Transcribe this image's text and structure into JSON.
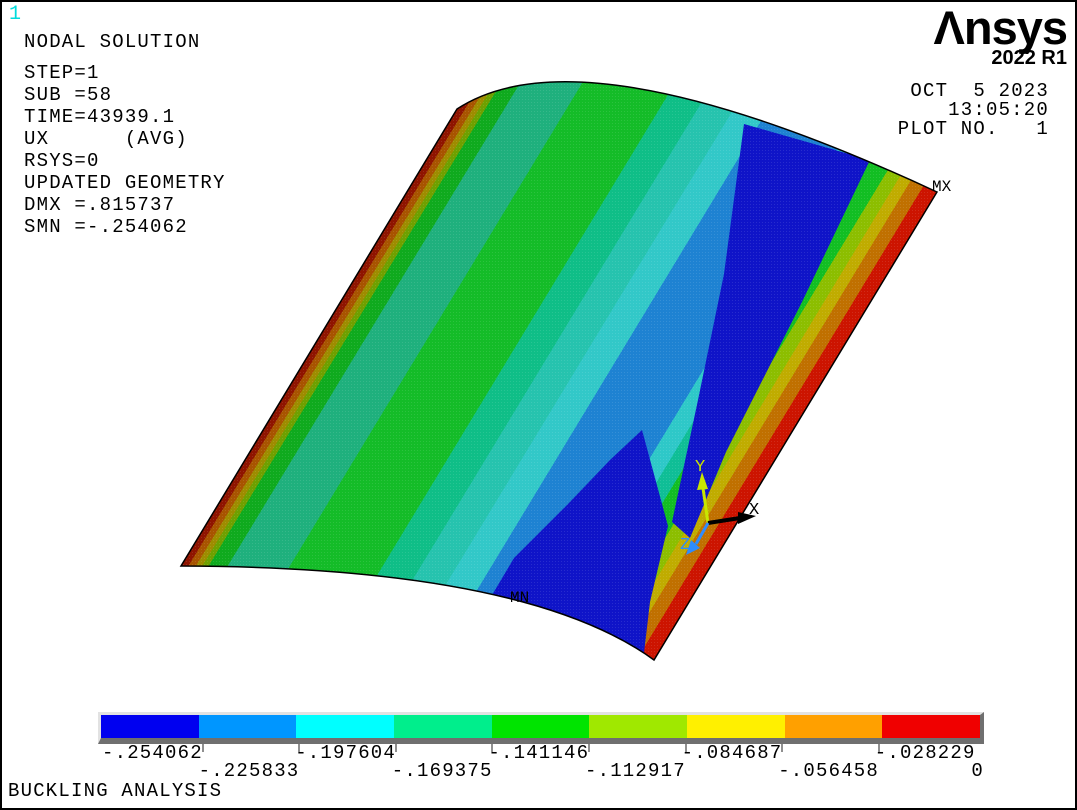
{
  "window": {
    "marker": "1"
  },
  "info_panel": {
    "title": "NODAL SOLUTION",
    "lines": [
      "STEP=1",
      "SUB =58",
      "TIME=43939.1",
      "UX      (AVG)",
      "RSYS=0",
      "UPDATED GEOMETRY",
      "DMX =.815737",
      "SMN =-.254062"
    ]
  },
  "brand": {
    "logo": "Λnsys",
    "version": "2022 R1"
  },
  "meta": {
    "lines": [
      "OCT  5 2023",
      "13:05:20",
      "PLOT NO.   1"
    ]
  },
  "plot": {
    "max_marker": "MX",
    "min_marker": "MN",
    "triad": {
      "x": "X",
      "y": "Y",
      "z": "Z"
    }
  },
  "footer": {
    "analysis_title": "BUCKLING ANALYSIS"
  },
  "legend": {
    "values": [
      "-.254062",
      "-.225833",
      "-.197604",
      "-.169375",
      "-.141146",
      "-.112917",
      "-.084687",
      "-.056458",
      "-.028229",
      "0"
    ],
    "colors": [
      "#0000f0",
      "#0096ff",
      "#00ffff",
      "#00ee8c",
      "#00e400",
      "#a0e800",
      "#fff000",
      "#ffa000",
      "#f00000"
    ]
  },
  "chart_data": {
    "type": "heatmap",
    "subtype": "fea-contour-plot",
    "quantity": "UX",
    "contour_boundaries": [
      -0.254062,
      -0.225833,
      -0.197604,
      -0.169375,
      -0.141146,
      -0.112917,
      -0.084687,
      -0.056458,
      -0.028229,
      0
    ],
    "band_colors": [
      "#0000f0",
      "#0096ff",
      "#00ffff",
      "#00ee8c",
      "#00e400",
      "#a0e800",
      "#fff000",
      "#ffa000",
      "#f00000"
    ],
    "min_value": -0.254062,
    "max_value": 0,
    "dmx": 0.815737,
    "smn": -0.254062,
    "legend_position": "bottom"
  }
}
